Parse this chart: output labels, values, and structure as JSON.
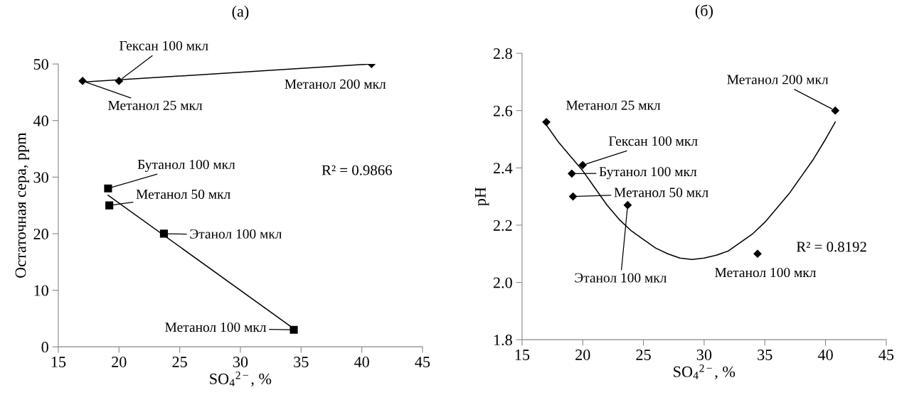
{
  "chart_data": [
    {
      "type": "scatter",
      "title": "(a)",
      "xlabel": "SO$_{4}$$^{2−}$, %",
      "ylabel": "Остаточная сера, ppm",
      "xlim": [
        15,
        45
      ],
      "xticks": [
        15,
        20,
        25,
        30,
        35,
        40,
        45
      ],
      "ylim": [
        0,
        50
      ],
      "yticks": [
        0,
        10,
        20,
        30,
        40,
        50
      ],
      "series": [
        {
          "type": "scatter",
          "marker": "diamond",
          "color": "#000000",
          "x": [
            17,
            20,
            40.8
          ],
          "values": [
            47,
            47,
            50
          ]
        },
        {
          "type": "line",
          "marker": "none",
          "color": "#000000",
          "x": [
            17,
            40.8
          ],
          "values": [
            46.8,
            50
          ]
        },
        {
          "type": "scatter",
          "marker": "square",
          "color": "#000000",
          "x": [
            19.1,
            19.2,
            23.7,
            34.4
          ],
          "values": [
            28,
            25,
            20,
            3
          ]
        },
        {
          "type": "line",
          "marker": "none",
          "color": "#000000",
          "x": [
            19.1,
            34.4
          ],
          "values": [
            26.8,
            3.2
          ]
        }
      ],
      "annotations": [
        {
          "text": "Гексан 100 мкл",
          "x": 20,
          "y": 47
        },
        {
          "text": "Метанол 25 мкл",
          "x": 17,
          "y": 47
        },
        {
          "text": "Метанол 200 мкл",
          "x": 40.8,
          "y": 50
        },
        {
          "text": "Бутанол 100 мкл",
          "x": 19.1,
          "y": 28
        },
        {
          "text": "Метанол 50 мкл",
          "x": 19.2,
          "y": 25
        },
        {
          "text": "Этанол 100 мкл",
          "x": 23.7,
          "y": 20
        },
        {
          "text": "Метанол 100 мкл",
          "x": 34.4,
          "y": 3
        },
        "R² = 0.9866"
      ]
    },
    {
      "type": "scatter",
      "title": "(б)",
      "xlabel": "SO$_{4}$$^{2−}$, %",
      "ylabel": "pH",
      "xlim": [
        15,
        45
      ],
      "xticks": [
        15,
        20,
        25,
        30,
        35,
        40,
        45
      ],
      "ylim": [
        1.8,
        2.8
      ],
      "yticks": [
        {
          "value": 1.8,
          "label": "1.8"
        },
        {
          "value": 2.0,
          "label": "2.0"
        },
        {
          "value": 2.2,
          "label": "2.2"
        },
        {
          "value": 2.4,
          "label": "2.4"
        },
        {
          "value": 2.6,
          "label": "2.6"
        },
        {
          "value": 2.8,
          "label": "2.8"
        }
      ],
      "series": [
        {
          "type": "scatter",
          "marker": "diamond",
          "color": "#000000",
          "x": [
            17,
            20,
            19.1,
            19.2,
            23.7,
            34.4,
            40.8
          ],
          "values": [
            2.56,
            2.41,
            2.38,
            2.3,
            2.27,
            2.1,
            2.6
          ]
        },
        {
          "type": "line",
          "marker": "none",
          "color": "#000000",
          "x": [
            17,
            18,
            19,
            20,
            21,
            22,
            23,
            24,
            25,
            26,
            27,
            28,
            29,
            30,
            31,
            32,
            33,
            34,
            35,
            36,
            37,
            38,
            39,
            40,
            40.8
          ],
          "values": [
            2.55,
            2.49,
            2.44,
            2.39,
            2.33,
            2.27,
            2.22,
            2.18,
            2.15,
            2.12,
            2.1,
            2.085,
            2.08,
            2.085,
            2.095,
            2.11,
            2.14,
            2.17,
            2.21,
            2.26,
            2.31,
            2.37,
            2.43,
            2.5,
            2.56
          ]
        }
      ],
      "annotations": [
        {
          "text": "Метанол 25 мкл",
          "x": 17,
          "y": 2.56
        },
        {
          "text": "Гексан 100 мкл",
          "x": 20,
          "y": 2.41
        },
        {
          "text": "Бутанол 100 мкл",
          "x": 19.1,
          "y": 2.38
        },
        {
          "text": "Метанол 50 мкл",
          "x": 19.2,
          "y": 2.3
        },
        {
          "text": "Этанол 100 мкл",
          "x": 23.7,
          "y": 2.27
        },
        {
          "text": "Метанол 100 мкл",
          "x": 34.4,
          "y": 2.1
        },
        {
          "text": "Метанол 200 мкл",
          "x": 40.8,
          "y": 2.6
        },
        "R² = 0.8192"
      ]
    }
  ]
}
